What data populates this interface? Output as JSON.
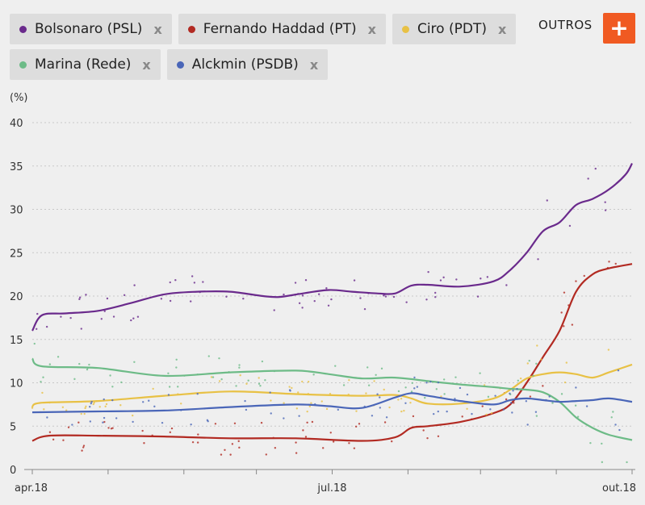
{
  "legend": {
    "chips": [
      {
        "label": "Bolsonaro (PSL)",
        "color": "#6a2a8c",
        "close": "x"
      },
      {
        "label": "Fernando Haddad (PT)",
        "color": "#b22a22",
        "close": "x"
      },
      {
        "label": "Ciro (PDT)",
        "color": "#e8c145",
        "close": "x"
      },
      {
        "label": "Marina (Rede)",
        "color": "#6dbb87",
        "close": "x"
      },
      {
        "label": "Alckmin (PSDB)",
        "color": "#4a66b8",
        "close": "x"
      }
    ],
    "outros_label": "OUTROS",
    "outros_button": "+"
  },
  "chart_data": {
    "type": "line",
    "title": "",
    "ylabel": "(%)",
    "xlabel": "",
    "ylim": [
      0,
      42
    ],
    "xlim": [
      0,
      182
    ],
    "yticks": [
      0,
      5,
      10,
      15,
      20,
      25,
      30,
      35,
      40
    ],
    "xticks": [
      {
        "x": 0,
        "label": "apr.18"
      },
      {
        "x": 91,
        "label": "jul.18"
      },
      {
        "x": 182,
        "label": "out.18"
      }
    ],
    "minor_xticks": [
      23,
      46,
      68,
      114,
      136,
      159
    ],
    "grid": true,
    "series": [
      {
        "name": "Bolsonaro (PSL)",
        "color": "#6a2a8c",
        "x": [
          0,
          3,
          10,
          20,
          30,
          40,
          50,
          60,
          70,
          75,
          82,
          90,
          97,
          105,
          110,
          115,
          120,
          130,
          140,
          145,
          150,
          155,
          160,
          165,
          170,
          175,
          180,
          182
        ],
        "y": [
          16,
          17.8,
          18,
          18.3,
          19.2,
          20.2,
          20.5,
          20.5,
          20,
          19.9,
          20.3,
          20.7,
          20.5,
          20.3,
          20.3,
          21.2,
          21.3,
          21.1,
          21.7,
          23,
          25,
          27.5,
          28.5,
          30.5,
          31.2,
          32.3,
          34,
          35.3
        ]
      },
      {
        "name": "Fernando Haddad (PT)",
        "color": "#b22a22",
        "x": [
          0,
          5,
          20,
          40,
          60,
          80,
          100,
          110,
          115,
          120,
          130,
          140,
          145,
          150,
          155,
          160,
          165,
          170,
          175,
          182
        ],
        "y": [
          3.3,
          3.9,
          3.9,
          3.8,
          3.6,
          3.6,
          3.3,
          3.7,
          4.8,
          5,
          5.5,
          6.5,
          7.5,
          10,
          13,
          16,
          20.5,
          22.5,
          23.2,
          23.7
        ]
      },
      {
        "name": "Ciro (PDT)",
        "color": "#e8c145",
        "x": [
          0,
          3,
          20,
          40,
          60,
          80,
          100,
          110,
          115,
          120,
          130,
          140,
          145,
          150,
          155,
          160,
          165,
          170,
          175,
          182
        ],
        "y": [
          7.3,
          7.7,
          7.9,
          8.5,
          9,
          8.7,
          8.5,
          8.6,
          8.2,
          7.6,
          7.6,
          8.2,
          9.2,
          10.5,
          11,
          11.2,
          11,
          10.6,
          11.2,
          12.1
        ]
      },
      {
        "name": "Marina (Rede)",
        "color": "#6dbb87",
        "x": [
          0,
          3,
          20,
          40,
          60,
          80,
          90,
          100,
          110,
          120,
          130,
          140,
          145,
          150,
          155,
          160,
          165,
          170,
          175,
          182
        ],
        "y": [
          12.8,
          11.9,
          11.7,
          10.8,
          11.2,
          11.4,
          11,
          10.5,
          10.6,
          10.2,
          9.8,
          9.5,
          9.3,
          9.2,
          8.9,
          7.8,
          6,
          4.8,
          4,
          3.4
        ]
      },
      {
        "name": "Alckmin (PSDB)",
        "color": "#4a66b8",
        "x": [
          0,
          20,
          40,
          60,
          80,
          90,
          100,
          110,
          115,
          120,
          130,
          140,
          145,
          150,
          155,
          160,
          165,
          170,
          175,
          182
        ],
        "y": [
          6.6,
          6.7,
          6.8,
          7.2,
          7.5,
          7.3,
          7.1,
          8.3,
          8.8,
          8.5,
          7.9,
          7.5,
          8,
          8.2,
          8,
          7.8,
          7.9,
          8,
          8.2,
          7.8
        ]
      }
    ]
  }
}
